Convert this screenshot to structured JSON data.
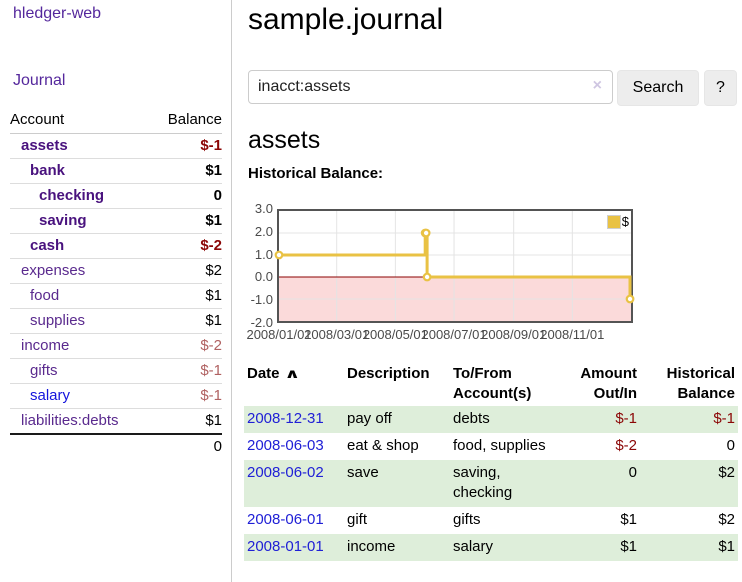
{
  "app": {
    "brand": "hledger-web"
  },
  "sidebar": {
    "journal_link": "Journal",
    "header": {
      "account": "Account",
      "balance": "Balance"
    },
    "accounts": [
      {
        "name": "assets",
        "balance": "$-1",
        "indent": 1,
        "matched": true,
        "negative": "strong"
      },
      {
        "name": "bank",
        "balance": "$1",
        "indent": 2,
        "matched": true,
        "negative": "none"
      },
      {
        "name": "checking",
        "balance": "0",
        "indent": 3,
        "matched": true,
        "negative": "none"
      },
      {
        "name": "saving",
        "balance": "$1",
        "indent": 3,
        "matched": true,
        "negative": "none"
      },
      {
        "name": "cash",
        "balance": "$-2",
        "indent": 2,
        "matched": true,
        "negative": "strong"
      },
      {
        "name": "expenses",
        "balance": "$2",
        "indent": 1,
        "matched": false,
        "negative": "none"
      },
      {
        "name": "food",
        "balance": "$1",
        "indent": 2,
        "matched": false,
        "negative": "none"
      },
      {
        "name": "supplies",
        "balance": "$1",
        "indent": 2,
        "matched": false,
        "negative": "none"
      },
      {
        "name": "income",
        "balance": "$-2",
        "indent": 1,
        "matched": false,
        "negative": "soft"
      },
      {
        "name": "gifts",
        "balance": "$-1",
        "indent": 2,
        "matched": false,
        "negative": "soft"
      },
      {
        "name": "salary",
        "balance": "$-1",
        "indent": 2,
        "matched": false,
        "negative": "soft",
        "link_color": "blue"
      },
      {
        "name": "liabilities:debts",
        "balance": "$1",
        "indent": 1,
        "matched": false,
        "negative": "none"
      }
    ],
    "total": "0"
  },
  "main": {
    "title": "sample.journal",
    "search": {
      "value": "inacct:assets",
      "clear_icon": "×",
      "search_button": "Search",
      "help_button": "?"
    },
    "account_heading": "assets",
    "chart_heading": "Historical Balance:"
  },
  "chart_data": {
    "type": "line",
    "step": true,
    "title": "Historical Balance:",
    "series": [
      {
        "name": "$",
        "color": "#e9c244",
        "points": [
          [
            "2008-01-01",
            1
          ],
          [
            "2008-06-01",
            2
          ],
          [
            "2008-06-02",
            2
          ],
          [
            "2008-06-03",
            0
          ],
          [
            "2008-12-31",
            -1
          ]
        ]
      }
    ],
    "xlim": [
      "2008-01-01",
      "2009-01-01"
    ],
    "ylim": [
      -2,
      3
    ],
    "yticks": [
      {
        "v": 3,
        "label": "3.0"
      },
      {
        "v": 2,
        "label": "2.0"
      },
      {
        "v": 1,
        "label": "1.0"
      },
      {
        "v": 0,
        "label": "0.0"
      },
      {
        "v": -1,
        "label": "-1.0"
      },
      {
        "v": -2,
        "label": "-2.0"
      }
    ],
    "xticks": [
      {
        "date": "2008-01-01",
        "label": "2008/01/01"
      },
      {
        "date": "2008-03-01",
        "label": "2008/03/01"
      },
      {
        "date": "2008-05-01",
        "label": "2008/05/01"
      },
      {
        "date": "2008-07-01",
        "label": "2008/07/01"
      },
      {
        "date": "2008-09-01",
        "label": "2008/09/01"
      },
      {
        "date": "2008-11-01",
        "label": "2008/11/01"
      }
    ],
    "legend": {
      "label": "$",
      "position": "top-right"
    },
    "grid": true,
    "colors": {
      "negative_region": "#fbdada",
      "zero_line": "#8b0000",
      "grid": "#e4e4e4",
      "border": "#545454",
      "marker_fill": "#ffffff"
    }
  },
  "register": {
    "sort_icon": "∧",
    "headers": [
      {
        "lines": [
          "Date"
        ],
        "sort": "asc",
        "align": "left"
      },
      {
        "lines": [
          "Description"
        ],
        "align": "left"
      },
      {
        "lines": [
          "To/From",
          "Account(s)"
        ],
        "align": "left"
      },
      {
        "lines": [
          "Amount",
          "Out/In"
        ],
        "align": "right"
      },
      {
        "lines": [
          "Historical",
          "Balance"
        ],
        "align": "right"
      }
    ],
    "rows": [
      {
        "date": "2008-12-31",
        "description": "pay off",
        "accounts": "debts",
        "amount": "$-1",
        "balance": "$-1",
        "amount_negative": true,
        "balance_negative": true
      },
      {
        "date": "2008-06-03",
        "description": "eat & shop",
        "accounts": "food, supplies",
        "amount": "$-2",
        "balance": "0",
        "amount_negative": true,
        "balance_negative": false
      },
      {
        "date": "2008-06-02",
        "description": "save",
        "accounts": "saving, checking",
        "amount": "0",
        "balance": "$2",
        "amount_negative": false,
        "balance_negative": false
      },
      {
        "date": "2008-06-01",
        "description": "gift",
        "accounts": "gifts",
        "amount": "$1",
        "balance": "$2",
        "amount_negative": false,
        "balance_negative": false
      },
      {
        "date": "2008-01-01",
        "description": "income",
        "accounts": "salary",
        "amount": "$1",
        "balance": "$1",
        "amount_negative": false,
        "balance_negative": false
      }
    ]
  },
  "colors": {
    "link_purple": "#54279c",
    "account_purple": "#5a2a8e",
    "matched_purple": "#49127e",
    "link_blue": "#1414dc",
    "negative_strong": "#8b0606",
    "negative_soft": "#b06161",
    "row_stripe_green": "#deeeda",
    "table_date_blue": "#2020d6"
  }
}
